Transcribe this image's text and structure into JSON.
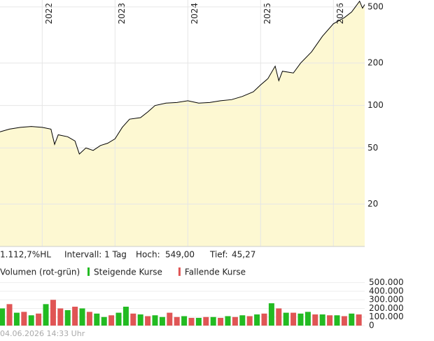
{
  "chart_data": [
    {
      "type": "line",
      "log": true,
      "grid": true,
      "color": "#000000",
      "fill": "#fdf8d2",
      "x": [
        2021.42,
        2021.55,
        2021.7,
        2021.85,
        2022.0,
        2022.12,
        2022.17,
        2022.22,
        2022.35,
        2022.45,
        2022.51,
        2022.6,
        2022.7,
        2022.8,
        2022.9,
        2023.0,
        2023.1,
        2023.2,
        2023.35,
        2023.45,
        2023.55,
        2023.7,
        2023.85,
        2024.0,
        2024.15,
        2024.3,
        2024.45,
        2024.6,
        2024.75,
        2024.9,
        2025.0,
        2025.1,
        2025.2,
        2025.25,
        2025.3,
        2025.45,
        2025.55,
        2025.7,
        2025.85,
        2026.0,
        2026.15,
        2026.25,
        2026.36,
        2026.4,
        2026.43
      ],
      "values": [
        65,
        68,
        70,
        71,
        70,
        68,
        53,
        62,
        60,
        56,
        45.27,
        50,
        48,
        52,
        54,
        58,
        70,
        80,
        82,
        90,
        100,
        104,
        105,
        108,
        104,
        105,
        108,
        110,
        116,
        125,
        140,
        155,
        190,
        150,
        175,
        170,
        200,
        240,
        310,
        380,
        420,
        460,
        549,
        490,
        520
      ],
      "xlim": [
        2021.42,
        2026.43
      ],
      "xticks": [
        2022,
        2023,
        2024,
        2025,
        2026
      ],
      "ylim": [
        10,
        560
      ],
      "yticks": [
        20,
        50,
        100,
        200,
        500
      ],
      "info": {
        "change": "1.112,7%HL",
        "interval": "Intervall: 1 Tag",
        "high_label": "Hoch:",
        "high": "549,00",
        "low_label": "Tief:",
        "low": "45,27"
      }
    },
    {
      "type": "bar",
      "title": "Volumen (rot-grün)",
      "x": [
        2021.45,
        2021.55,
        2021.65,
        2021.75,
        2021.85,
        2021.95,
        2022.05,
        2022.15,
        2022.25,
        2022.35,
        2022.45,
        2022.55,
        2022.65,
        2022.75,
        2022.85,
        2022.95,
        2023.05,
        2023.15,
        2023.25,
        2023.35,
        2023.45,
        2023.55,
        2023.65,
        2023.75,
        2023.85,
        2023.95,
        2024.05,
        2024.15,
        2024.25,
        2024.35,
        2024.45,
        2024.55,
        2024.65,
        2024.75,
        2024.85,
        2024.95,
        2025.05,
        2025.15,
        2025.25,
        2025.35,
        2025.45,
        2025.55,
        2025.65,
        2025.75,
        2025.85,
        2025.95,
        2026.05,
        2026.15,
        2026.25,
        2026.35
      ],
      "series": [
        {
          "name": "Steigende Kurse",
          "color": "#22bb22",
          "values": [
            200000,
            null,
            150000,
            null,
            120000,
            null,
            250000,
            null,
            null,
            180000,
            null,
            200000,
            null,
            140000,
            100000,
            null,
            150000,
            220000,
            null,
            130000,
            null,
            120000,
            100000,
            null,
            null,
            110000,
            null,
            90000,
            null,
            100000,
            null,
            110000,
            null,
            120000,
            null,
            130000,
            null,
            260000,
            null,
            150000,
            null,
            140000,
            160000,
            null,
            130000,
            null,
            120000,
            null,
            140000,
            null
          ]
        },
        {
          "name": "Fallende Kurse",
          "color": "#e05555",
          "values": [
            null,
            250000,
            null,
            160000,
            null,
            140000,
            null,
            300000,
            200000,
            null,
            220000,
            null,
            160000,
            null,
            null,
            120000,
            null,
            null,
            140000,
            null,
            110000,
            null,
            null,
            150000,
            100000,
            null,
            90000,
            null,
            100000,
            null,
            90000,
            null,
            100000,
            null,
            110000,
            null,
            140000,
            null,
            200000,
            null,
            150000,
            null,
            null,
            130000,
            null,
            120000,
            null,
            110000,
            null,
            130000
          ]
        }
      ],
      "ylim": [
        0,
        530000
      ],
      "yticks": [
        0,
        {
          "value": 100000,
          "label": "100.000"
        },
        {
          "value": 200000,
          "label": "200.000"
        },
        {
          "value": 300000,
          "label": "300.000"
        },
        {
          "value": 400000,
          "label": "400.000"
        },
        {
          "value": 500000,
          "label": "500.000"
        }
      ]
    }
  ],
  "footer": "04.06.2026 14:33 Uhr"
}
